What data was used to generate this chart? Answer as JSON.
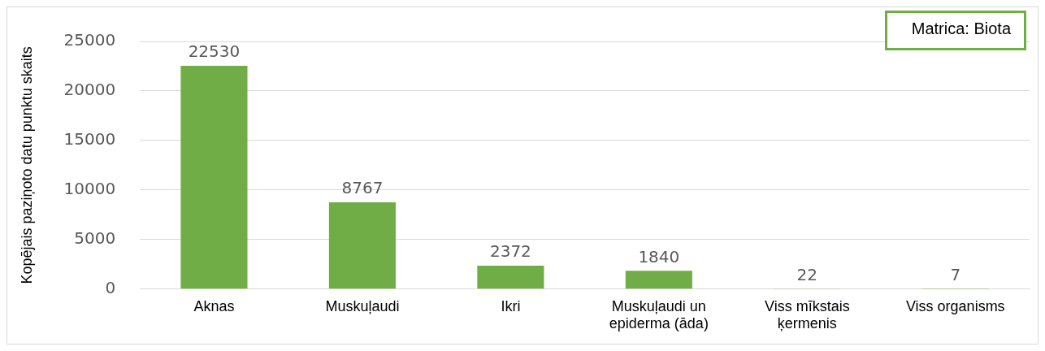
{
  "chart_data": {
    "type": "bar",
    "ylabel": "Kopējais paziņoto datu punktu skaits",
    "annotations": [
      "Matrica: Biota"
    ],
    "categories": [
      "Aknas",
      "Muskuļaudi",
      "Ikri",
      "Muskuļaudi un epiderma (āda)",
      "Viss mīkstais ķermenis",
      "Viss organisms"
    ],
    "values": [
      22530,
      8767,
      2372,
      1840,
      22,
      7
    ],
    "color": "#70ad47",
    "ylim": [
      0,
      25000
    ],
    "yticks": [
      0,
      5000,
      10000,
      15000,
      20000,
      25000
    ],
    "grid": "y",
    "data_labels": true
  }
}
